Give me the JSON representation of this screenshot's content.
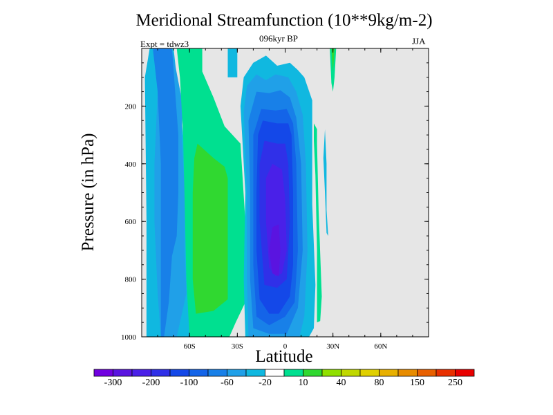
{
  "chart_data": {
    "type": "heatmap",
    "title": "Meridional Streamfunction (10**9kg/m-2)",
    "subtitle": "096kyr BP",
    "experiment": "Expt = tdwz3",
    "season": "JJA",
    "xlabel": "Latitude",
    "ylabel": "Pressure (in hPa)",
    "xlim": [
      -90,
      90
    ],
    "ylim": [
      1000,
      0
    ],
    "x_ticks": [
      {
        "value": -60,
        "label": "60S"
      },
      {
        "value": -30,
        "label": "30S"
      },
      {
        "value": 0,
        "label": "0"
      },
      {
        "value": 30,
        "label": "30N"
      },
      {
        "value": 60,
        "label": "60N"
      }
    ],
    "y_ticks": [
      {
        "value": 200,
        "label": "200"
      },
      {
        "value": 400,
        "label": "400"
      },
      {
        "value": 600,
        "label": "600"
      },
      {
        "value": 800,
        "label": "800"
      },
      {
        "value": 1000,
        "label": "1000"
      }
    ],
    "background_color": "#e6e6e6",
    "colorbar": {
      "levels": [
        -300,
        -250,
        -200,
        -150,
        -100,
        -80,
        -60,
        -40,
        -20,
        -10,
        10,
        20,
        40,
        60,
        80,
        100,
        150,
        200,
        250,
        300
      ],
      "labels": [
        "-300",
        "-200",
        "-100",
        "-60",
        "-20",
        "10",
        "40",
        "80",
        "150",
        "250"
      ],
      "colors": [
        "#7000e0",
        "#5a14e0",
        "#4a20e8",
        "#3030e8",
        "#1448e8",
        "#1464e8",
        "#1880e8",
        "#20a0e8",
        "#10b8e0",
        "#ffffff",
        "#00e090",
        "#30d830",
        "#90e000",
        "#c0d800",
        "#e0d000",
        "#e8b000",
        "#e88c00",
        "#e86000",
        "#e83000",
        "#e80000"
      ]
    },
    "contour_regions": [
      {
        "level": -20,
        "color": "#10b8e0",
        "points": [
          [
            -87,
            1000
          ],
          [
            -87,
            590
          ],
          [
            -88,
            100
          ],
          [
            -85,
            0
          ],
          [
            -70,
            0
          ],
          [
            -66,
            200
          ],
          [
            -62,
            400
          ],
          [
            -60,
            600
          ],
          [
            -59,
            800
          ],
          [
            -60,
            930
          ],
          [
            -60,
            1000
          ]
        ]
      },
      {
        "level": -40,
        "color": "#20a0e8",
        "points": [
          [
            -86,
            0
          ],
          [
            -81,
            0
          ],
          [
            -80,
            150
          ],
          [
            -82,
            400
          ],
          [
            -82,
            600
          ],
          [
            -80,
            850
          ],
          [
            -78,
            1000
          ],
          [
            -68,
            1000
          ],
          [
            -66,
            950
          ],
          [
            -62,
            850
          ],
          [
            -63,
            700
          ],
          [
            -63,
            500
          ],
          [
            -65,
            300
          ],
          [
            -64,
            200
          ],
          [
            -71,
            0
          ]
        ]
      },
      {
        "level": -60,
        "color": "#1880e8",
        "points": [
          [
            -83,
            0
          ],
          [
            -71,
            0
          ],
          [
            -69,
            150
          ],
          [
            -67,
            300
          ],
          [
            -67,
            500
          ],
          [
            -68,
            650
          ],
          [
            -71,
            720
          ],
          [
            -73,
            880
          ],
          [
            -76,
            1000
          ],
          [
            -78,
            1000
          ],
          [
            -78,
            400
          ],
          [
            -80,
            150
          ]
        ]
      },
      {
        "level": -20,
        "color": "#10b8e0",
        "points": [
          [
            -36,
            0
          ],
          [
            -30,
            0
          ],
          [
            -30,
            100
          ],
          [
            -36,
            100
          ]
        ]
      },
      {
        "level": 10,
        "color": "#00e090",
        "points": [
          [
            -68,
            0
          ],
          [
            -52,
            0
          ],
          [
            -52,
            80
          ],
          [
            -45,
            170
          ],
          [
            -38,
            270
          ],
          [
            -28,
            330
          ],
          [
            -25,
            600
          ],
          [
            -25,
            880
          ],
          [
            -31,
            950
          ],
          [
            -35,
            1000
          ],
          [
            -60,
            1000
          ],
          [
            -62,
            800
          ],
          [
            -63,
            550
          ],
          [
            -64,
            300
          ],
          [
            -66,
            100
          ]
        ]
      },
      {
        "level": 20,
        "color": "#30d830",
        "points": [
          [
            -55,
            330
          ],
          [
            -45,
            380
          ],
          [
            -38,
            410
          ],
          [
            -36,
            450
          ],
          [
            -36,
            870
          ],
          [
            -45,
            910
          ],
          [
            -56,
            920
          ],
          [
            -58,
            800
          ],
          [
            -58,
            500
          ],
          [
            -57,
            380
          ]
        ]
      },
      {
        "level": -20,
        "color": "#10b8e0",
        "points": [
          [
            -25,
            1000
          ],
          [
            -26,
            800
          ],
          [
            -25,
            500
          ],
          [
            -28,
            200
          ],
          [
            -26,
            100
          ],
          [
            -20,
            50
          ],
          [
            -12,
            25
          ],
          [
            -5,
            60
          ],
          [
            3,
            50
          ],
          [
            8,
            75
          ],
          [
            12,
            100
          ],
          [
            17,
            180
          ],
          [
            17,
            300
          ],
          [
            17,
            540
          ],
          [
            19,
            820
          ],
          [
            18,
            970
          ],
          [
            15,
            1000
          ]
        ]
      },
      {
        "level": -40,
        "color": "#20a0e8",
        "points": [
          [
            -23,
            1000
          ],
          [
            -24,
            800
          ],
          [
            -24,
            500
          ],
          [
            -26,
            220
          ],
          [
            -24,
            130
          ],
          [
            -18,
            90
          ],
          [
            -12,
            110
          ],
          [
            -6,
            90
          ],
          [
            2,
            100
          ],
          [
            7,
            150
          ],
          [
            11,
            230
          ],
          [
            13,
            400
          ],
          [
            14,
            700
          ],
          [
            12,
            930
          ],
          [
            9,
            1000
          ]
        ]
      },
      {
        "level": -60,
        "color": "#1880e8",
        "points": [
          [
            -20,
            970
          ],
          [
            -22,
            800
          ],
          [
            -22,
            500
          ],
          [
            -23,
            250
          ],
          [
            -18,
            150
          ],
          [
            -10,
            155
          ],
          [
            -3,
            145
          ],
          [
            3,
            170
          ],
          [
            7,
            240
          ],
          [
            10,
            400
          ],
          [
            11,
            700
          ],
          [
            8,
            900
          ],
          [
            1,
            990
          ],
          [
            -10,
            990
          ]
        ]
      },
      {
        "level": -80,
        "color": "#1464e8",
        "points": [
          [
            -18,
            930
          ],
          [
            -20,
            750
          ],
          [
            -20,
            500
          ],
          [
            -20,
            300
          ],
          [
            -15,
            210
          ],
          [
            -6,
            215
          ],
          [
            1,
            210
          ],
          [
            5,
            260
          ],
          [
            7,
            400
          ],
          [
            8,
            700
          ],
          [
            6,
            880
          ],
          [
            0,
            930
          ],
          [
            -10,
            960
          ]
        ]
      },
      {
        "level": -100,
        "color": "#1448e8",
        "points": [
          [
            -16,
            870
          ],
          [
            -18,
            700
          ],
          [
            -18,
            500
          ],
          [
            -17,
            300
          ],
          [
            -14,
            250
          ],
          [
            -5,
            260
          ],
          [
            2,
            260
          ],
          [
            4,
            300
          ],
          [
            5,
            500
          ],
          [
            5,
            750
          ],
          [
            3,
            860
          ],
          [
            -4,
            920
          ],
          [
            -10,
            920
          ]
        ]
      },
      {
        "level": -150,
        "color": "#3030e8",
        "points": [
          [
            -13,
            820
          ],
          [
            -16,
            600
          ],
          [
            -16,
            400
          ],
          [
            -13,
            320
          ],
          [
            -5,
            330
          ],
          [
            0,
            330
          ],
          [
            2,
            400
          ],
          [
            3,
            600
          ],
          [
            1,
            800
          ],
          [
            -5,
            830
          ]
        ]
      },
      {
        "level": -200,
        "color": "#4a20e8",
        "points": [
          [
            -10,
            760
          ],
          [
            -12,
            600
          ],
          [
            -12,
            450
          ],
          [
            -8,
            400
          ],
          [
            -2,
            420
          ],
          [
            0,
            520
          ],
          [
            1,
            700
          ],
          [
            -2,
            780
          ],
          [
            -6,
            790
          ]
        ]
      },
      {
        "level": -250,
        "color": "#5a14e0",
        "points": [
          [
            -8,
            780
          ],
          [
            -10,
            700
          ],
          [
            -8,
            620
          ],
          [
            -4,
            610
          ],
          [
            -3,
            700
          ],
          [
            -4,
            790
          ]
        ]
      },
      {
        "level": 10,
        "color": "#00e090",
        "points": [
          [
            18,
            260
          ],
          [
            20,
            280
          ],
          [
            20,
            330
          ],
          [
            21,
            560
          ],
          [
            23,
            860
          ],
          [
            22,
            945
          ],
          [
            20,
            950
          ],
          [
            20,
            700
          ],
          [
            19,
            440
          ],
          [
            18,
            320
          ]
        ]
      },
      {
        "level": 10,
        "color": "#00e090",
        "points": [
          [
            28,
            0
          ],
          [
            32,
            0
          ],
          [
            31,
            100
          ],
          [
            30,
            150
          ],
          [
            29,
            120
          ]
        ]
      },
      {
        "level": 20,
        "color": "#30d830",
        "points": [
          [
            29,
            0
          ],
          [
            31,
            0
          ],
          [
            30,
            80
          ]
        ]
      },
      {
        "level": -20,
        "color": "#10b8e0",
        "points": [
          [
            25,
            280
          ],
          [
            26,
            400
          ],
          [
            26,
            560
          ],
          [
            27,
            650
          ],
          [
            26,
            640
          ],
          [
            25,
            500
          ],
          [
            24,
            380
          ]
        ]
      }
    ]
  }
}
